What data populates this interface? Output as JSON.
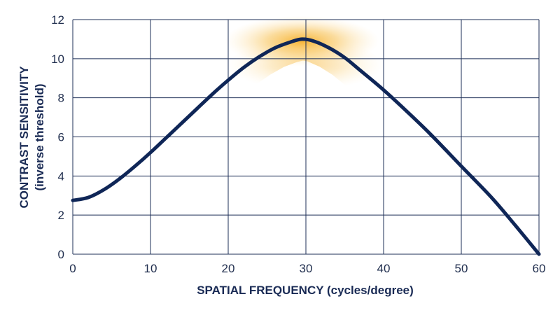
{
  "chart_data": {
    "type": "line",
    "title": "",
    "xlabel": "SPATIAL FREQUENCY (cycles/degree)",
    "ylabel": "CONTRAST SENSITIVITY",
    "ylabel_sub": "(inverse threshold)",
    "xlim": [
      0,
      60
    ],
    "ylim": [
      0,
      12
    ],
    "x_ticks": [
      0,
      10,
      20,
      30,
      40,
      50,
      60
    ],
    "y_ticks": [
      0,
      2,
      4,
      6,
      8,
      10,
      12
    ],
    "grid": true,
    "highlight": {
      "x_center": 29.5,
      "color": "#f6b02a"
    },
    "series": [
      {
        "color": "#0f2657",
        "x": [
          0,
          2,
          4,
          6,
          8,
          10,
          12,
          14,
          16,
          18,
          20,
          22,
          24,
          26,
          28,
          29.5,
          31,
          33,
          35,
          37,
          40,
          43,
          46,
          50,
          54,
          57,
          60
        ],
        "y": [
          2.75,
          2.9,
          3.3,
          3.85,
          4.5,
          5.2,
          5.95,
          6.7,
          7.45,
          8.2,
          8.9,
          9.55,
          10.1,
          10.55,
          10.85,
          11.0,
          10.9,
          10.55,
          10.05,
          9.4,
          8.4,
          7.3,
          6.15,
          4.5,
          2.85,
          1.45,
          0
        ]
      }
    ]
  }
}
